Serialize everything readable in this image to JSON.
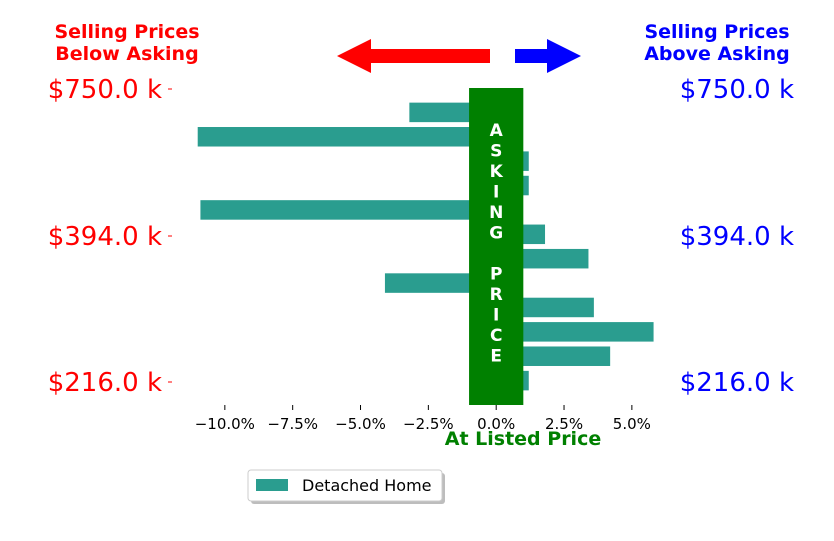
{
  "header": {
    "left_title": [
      "Selling Prices",
      "Below Asking"
    ],
    "right_title": [
      "Selling Prices",
      "Above Asking"
    ],
    "left_color": "#ff0000",
    "right_color": "#0000ff"
  },
  "center_band": {
    "label": "ASKING PRICE",
    "color": "#008000",
    "x_range": [
      -1.0,
      1.0
    ]
  },
  "x_axis_caption": {
    "text": "At Listed Price",
    "color": "#008000"
  },
  "legend": {
    "label": "Detached Home",
    "position": "bottom-center"
  },
  "chart_data": {
    "type": "bar",
    "orientation": "horizontal",
    "bar_color": "#2a9d8f",
    "xlim": [
      -11.8,
      6.0
    ],
    "xticks": [
      -10.0,
      -7.5,
      -5.0,
      -2.5,
      0.0,
      2.5,
      5.0
    ],
    "xtick_labels": [
      "−10.0%",
      "−7.5%",
      "−5.0%",
      "−2.5%",
      "0.0%",
      "2.5%",
      "5.0%"
    ],
    "y_labels_left": [
      "$750.0 k",
      "$394.0 k",
      "$216.0 k"
    ],
    "y_labels_right": [
      "$750.0 k",
      "$394.0 k",
      "$216.0 k"
    ],
    "series": [
      {
        "name": "Detached Home",
        "values": [
          -3.2,
          -11.0,
          1.2,
          1.2,
          -10.9,
          1.8,
          3.4,
          -4.1,
          3.6,
          5.8,
          4.2,
          1.2
        ]
      }
    ]
  }
}
